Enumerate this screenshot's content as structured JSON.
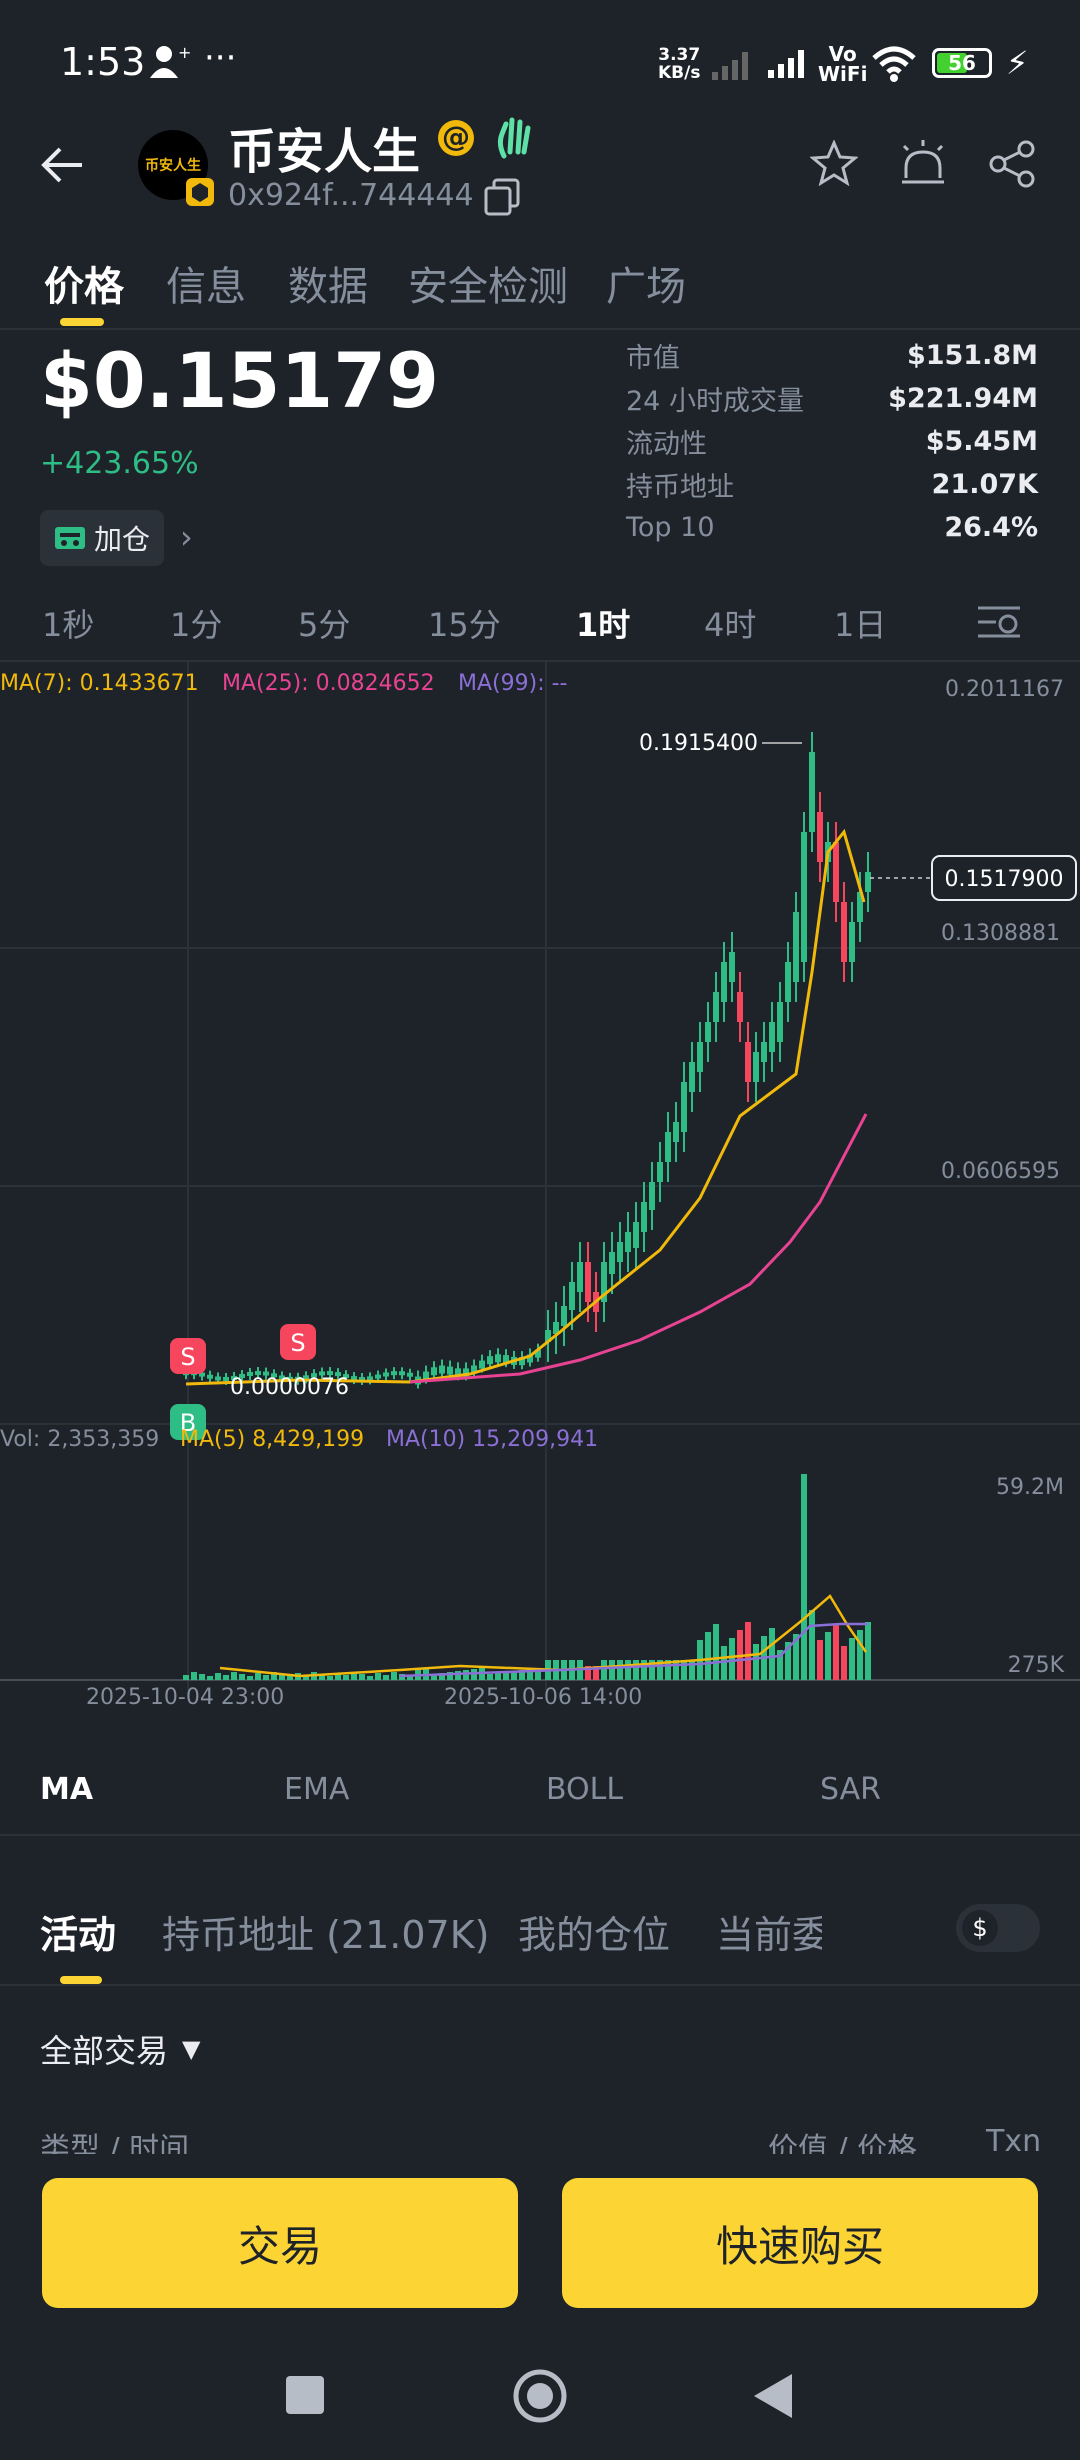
{
  "status_bar": {
    "time": "1:53",
    "net_speed_top": "3.37",
    "net_speed_bottom": "KB/s",
    "battery": "56",
    "wifi_label_top": "Vo",
    "wifi_label_bottom": "WiFi"
  },
  "header": {
    "token_name": "币安人生",
    "address": "0x924f...744444",
    "logo_text": "币安人生"
  },
  "tabs": [
    "价格",
    "信息",
    "数据",
    "安全检测",
    "广场"
  ],
  "price": {
    "value": "$0.15179",
    "change": "+423.65%",
    "add_label": "加仓"
  },
  "stats": [
    {
      "label": "市值",
      "value": "$151.8M"
    },
    {
      "label": "24 小时成交量",
      "value": "$221.94M"
    },
    {
      "label": "流动性",
      "value": "$5.45M"
    },
    {
      "label": "持币地址",
      "value": "21.07K"
    },
    {
      "label": "Top 10",
      "value": "26.4%"
    }
  ],
  "timeframes": [
    "1秒",
    "1分",
    "5分",
    "15分",
    "1时",
    "4时",
    "1日"
  ],
  "active_timeframe": "1时",
  "ma_legend": {
    "ma7": "MA(7): 0.1433671",
    "ma25": "MA(25): 0.0824652",
    "ma99": "MA(99): --"
  },
  "price_axis": [
    "0.2011167",
    "0.1308881",
    "0.0606595"
  ],
  "annotations": {
    "high": "0.1915400",
    "low": "0.0000076",
    "current": "0.1517900",
    "marker_s": "S",
    "marker_b": "B"
  },
  "vol_legend": {
    "vol": "Vol: 2,353,359",
    "ma5": "MA(5) 8,429,199",
    "ma10": "MA(10) 15,209,941"
  },
  "vol_axis": [
    "59.2M",
    "275K"
  ],
  "date_axis": [
    "2025-10-04 23:00",
    "2025-10-06 14:00"
  ],
  "indicators": [
    "MA",
    "EMA",
    "BOLL",
    "SAR"
  ],
  "bottom_tabs": [
    "活动",
    "持币地址 (21.07K)",
    "我的仓位",
    "当前委"
  ],
  "currency_toggle": "$",
  "filter": "全部交易",
  "table_headers": {
    "left": "类型 / 时间",
    "mid": "价值 / 价格",
    "right": "Txn"
  },
  "buttons": {
    "trade": "交易",
    "quick_buy": "快速购买"
  },
  "colors": {
    "up": "#2ebd85",
    "down": "#f6465d",
    "accent": "#fcd535",
    "ma7": "#f0b90b",
    "ma25": "#e84393",
    "ma99": "#8b6fd6"
  }
}
